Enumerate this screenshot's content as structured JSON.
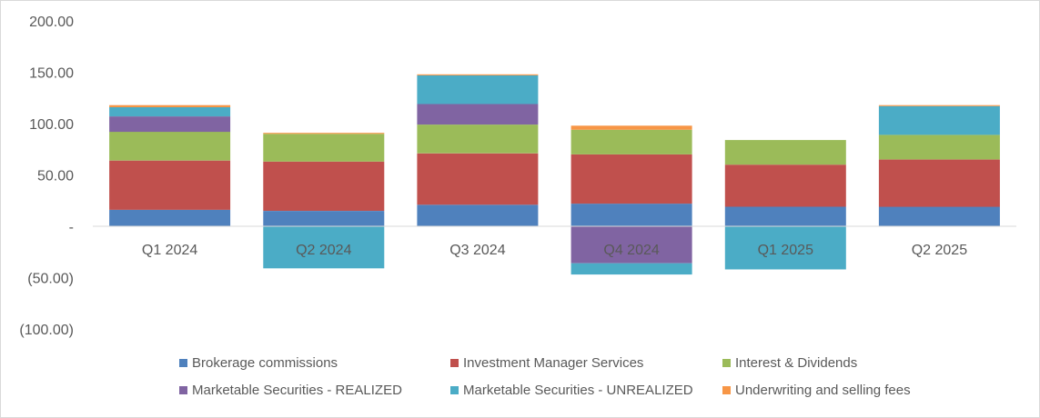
{
  "chart_data": {
    "type": "bar",
    "stacked": true,
    "categories": [
      "Q1 2024",
      "Q2 2024",
      "Q3 2024",
      "Q4 2024",
      "Q1 2025",
      "Q2 2025"
    ],
    "ylim": [
      -100,
      200
    ],
    "yticks": [
      200,
      150,
      100,
      50,
      0,
      -50,
      -100
    ],
    "ytick_labels": [
      "200.00",
      "150.00",
      "100.00",
      "50.00",
      "-",
      "(50.00)",
      "(100.00)"
    ],
    "grid": false,
    "legend_position": "bottom",
    "series": [
      {
        "name": "Brokerage commissions",
        "color": "#4f81bd",
        "values": [
          16,
          15,
          21,
          22,
          19,
          19
        ]
      },
      {
        "name": "Investment Manager Services",
        "color": "#c0504d",
        "values": [
          48,
          48,
          50,
          48,
          41,
          46
        ]
      },
      {
        "name": "Interest & Dividends",
        "color": "#9bbb59",
        "values": [
          28,
          27,
          28,
          24,
          24,
          24
        ]
      },
      {
        "name": "Marketable Securities - REALIZED",
        "color": "#8064a2",
        "values": [
          15,
          0,
          20,
          -36,
          0,
          0
        ]
      },
      {
        "name": "Marketable Securities - UNREALIZED",
        "color": "#4bacc6",
        "values": [
          9,
          -41,
          28,
          -11,
          -42,
          28
        ]
      },
      {
        "name": "Underwriting and selling fees",
        "color": "#f79646",
        "values": [
          2,
          1,
          1,
          4,
          0,
          1
        ]
      }
    ]
  }
}
